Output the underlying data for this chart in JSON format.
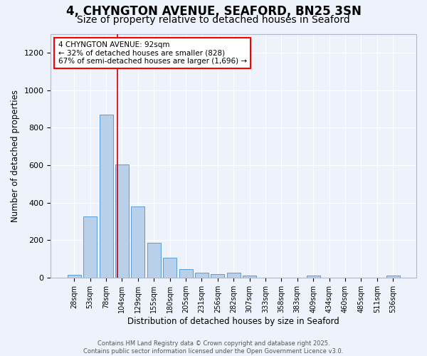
{
  "title1": "4, CHYNGTON AVENUE, SEAFORD, BN25 3SN",
  "title2": "Size of property relative to detached houses in Seaford",
  "xlabel": "Distribution of detached houses by size in Seaford",
  "ylabel": "Number of detached properties",
  "categories": [
    "28sqm",
    "53sqm",
    "78sqm",
    "104sqm",
    "129sqm",
    "155sqm",
    "180sqm",
    "205sqm",
    "231sqm",
    "256sqm",
    "282sqm",
    "307sqm",
    "333sqm",
    "358sqm",
    "383sqm",
    "409sqm",
    "434sqm",
    "460sqm",
    "485sqm",
    "511sqm",
    "536sqm"
  ],
  "values": [
    15,
    325,
    868,
    605,
    380,
    185,
    105,
    45,
    25,
    18,
    25,
    10,
    0,
    0,
    0,
    12,
    0,
    0,
    0,
    0,
    10
  ],
  "bar_color": "#b8d0ea",
  "bar_edge_color": "#5b9bd5",
  "vline_color": "#cc0000",
  "annotation_title": "4 CHYNGTON AVENUE: 92sqm",
  "annotation_line1": "← 32% of detached houses are smaller (828)",
  "annotation_line2": "67% of semi-detached houses are larger (1,696) →",
  "ylim": [
    0,
    1300
  ],
  "yticks": [
    0,
    200,
    400,
    600,
    800,
    1000,
    1200
  ],
  "footer1": "Contains HM Land Registry data © Crown copyright and database right 2025.",
  "footer2": "Contains public sector information licensed under the Open Government Licence v3.0.",
  "bg_color": "#eef2fb",
  "grid_color": "#ffffff",
  "title1_fontsize": 12,
  "title2_fontsize": 10,
  "vline_index": 2.72
}
